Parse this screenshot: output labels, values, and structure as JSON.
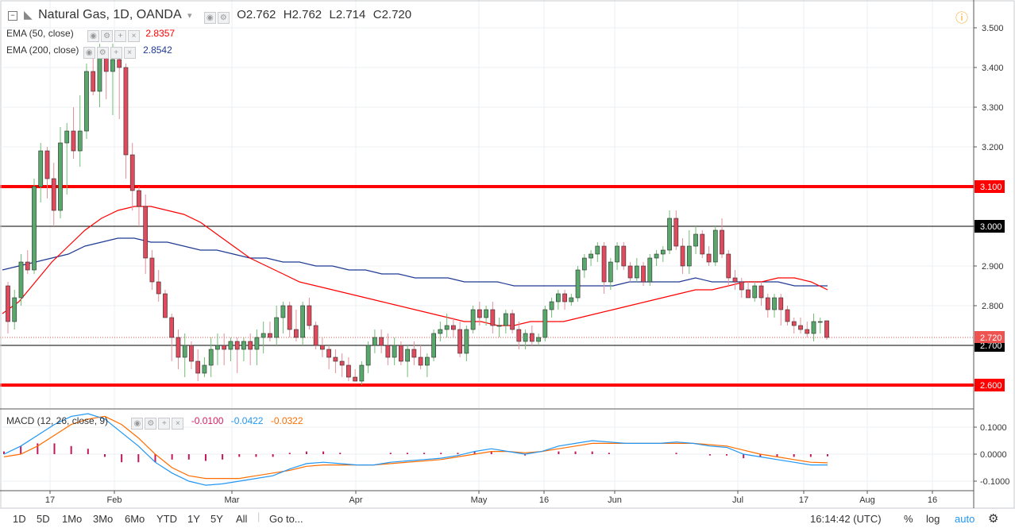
{
  "header": {
    "symbol_title": "Natural Gas, 1D, OANDA",
    "ohlc": [
      {
        "key": "O",
        "value": "2.762"
      },
      {
        "key": "H",
        "value": "2.762"
      },
      {
        "key": "L",
        "value": "2.714"
      },
      {
        "key": "C",
        "value": "2.720"
      }
    ],
    "indicators": [
      {
        "label": "EMA (50, close)",
        "value": "2.8357",
        "color": "#ff0000"
      },
      {
        "label": "EMA (200, close)",
        "value": "2.8542",
        "color": "#1f3a93"
      }
    ],
    "macd": {
      "label": "MACD (12, 26, close, 9)",
      "values": [
        {
          "value": "-0.0100",
          "color": "#d81b60"
        },
        {
          "value": "-0.0422",
          "color": "#2196f3"
        },
        {
          "value": "-0.0322",
          "color": "#ff6d00"
        }
      ]
    }
  },
  "bottom_bar": {
    "ranges": [
      "1D",
      "5D",
      "1Mo",
      "3Mo",
      "6Mo",
      "YTD",
      "1Y",
      "5Y",
      "All"
    ],
    "goto": "Go to...",
    "clock": "16:14:42 (UTC)",
    "percent": "%",
    "log": "log",
    "auto": "auto"
  },
  "chart_data": [
    {
      "type": "candlestick",
      "title": "Natural Gas, 1D, OANDA",
      "ylim": [
        2.54,
        3.54
      ],
      "y_ticks": [
        "3.500",
        "3.400",
        "3.300",
        "3.200",
        "3.000",
        "2.900",
        "2.800",
        "2.600"
      ],
      "x_tick_labels": [
        "17",
        "Feb",
        "Mar",
        "Apr",
        "May",
        "16",
        "Jun",
        "Jul",
        "17",
        "Aug",
        "16"
      ],
      "horizontal_levels": [
        {
          "value": 3.1,
          "label": "3.100",
          "color": "#ff0000",
          "style": "thick"
        },
        {
          "value": 3.0,
          "label": "3.000",
          "color": "#000000",
          "style": "thin"
        },
        {
          "value": 2.7,
          "label": "2.700",
          "color": "#000000",
          "style": "thin"
        },
        {
          "value": 2.6,
          "label": "2.600",
          "color": "#ff0000",
          "style": "thick"
        }
      ],
      "last_price": {
        "value": 2.72,
        "label": "2.720",
        "color": "#ef5350"
      },
      "candles": [
        [
          2.85,
          2.86,
          2.73,
          2.76
        ],
        [
          2.76,
          2.84,
          2.74,
          2.82
        ],
        [
          2.82,
          2.93,
          2.8,
          2.91
        ],
        [
          2.91,
          2.94,
          2.88,
          2.89
        ],
        [
          2.89,
          3.12,
          2.88,
          3.1
        ],
        [
          3.1,
          3.21,
          3.06,
          3.19
        ],
        [
          3.19,
          3.2,
          3.07,
          3.12
        ],
        [
          3.12,
          3.16,
          3.0,
          3.04
        ],
        [
          3.04,
          3.25,
          3.02,
          3.21
        ],
        [
          3.21,
          3.26,
          3.08,
          3.24
        ],
        [
          3.24,
          3.3,
          3.17,
          3.19
        ],
        [
          3.19,
          3.33,
          3.15,
          3.24
        ],
        [
          3.24,
          3.41,
          3.22,
          3.39
        ],
        [
          3.39,
          3.45,
          3.33,
          3.34
        ],
        [
          3.34,
          3.46,
          3.3,
          3.44
        ],
        [
          3.44,
          3.45,
          3.32,
          3.39
        ],
        [
          3.39,
          3.46,
          3.28,
          3.42
        ],
        [
          3.42,
          3.43,
          3.27,
          3.4
        ],
        [
          3.4,
          3.41,
          3.12,
          3.18
        ],
        [
          3.18,
          3.21,
          3.04,
          3.09
        ],
        [
          3.09,
          3.1,
          3.0,
          3.05
        ],
        [
          3.05,
          3.08,
          2.88,
          2.92
        ],
        [
          2.92,
          2.94,
          2.84,
          2.86
        ],
        [
          2.86,
          2.89,
          2.81,
          2.83
        ],
        [
          2.83,
          2.84,
          2.77,
          2.77
        ],
        [
          2.77,
          2.78,
          2.66,
          2.72
        ],
        [
          2.72,
          2.74,
          2.64,
          2.67
        ],
        [
          2.67,
          2.73,
          2.62,
          2.7
        ],
        [
          2.7,
          2.71,
          2.64,
          2.66
        ],
        [
          2.66,
          2.69,
          2.61,
          2.63
        ],
        [
          2.63,
          2.67,
          2.62,
          2.65
        ],
        [
          2.65,
          2.72,
          2.62,
          2.69
        ],
        [
          2.69,
          2.73,
          2.65,
          2.7
        ],
        [
          2.7,
          2.73,
          2.65,
          2.69
        ],
        [
          2.69,
          2.72,
          2.66,
          2.71
        ],
        [
          2.71,
          2.72,
          2.63,
          2.69
        ],
        [
          2.69,
          2.72,
          2.66,
          2.71
        ],
        [
          2.71,
          2.73,
          2.65,
          2.69
        ],
        [
          2.69,
          2.74,
          2.65,
          2.72
        ],
        [
          2.72,
          2.76,
          2.68,
          2.73
        ],
        [
          2.73,
          2.76,
          2.71,
          2.72
        ],
        [
          2.72,
          2.8,
          2.7,
          2.77
        ],
        [
          2.77,
          2.81,
          2.73,
          2.8
        ],
        [
          2.8,
          2.81,
          2.72,
          2.74
        ],
        [
          2.74,
          2.79,
          2.71,
          2.72
        ],
        [
          2.72,
          2.81,
          2.7,
          2.8
        ],
        [
          2.8,
          2.82,
          2.74,
          2.75
        ],
        [
          2.75,
          2.76,
          2.69,
          2.7
        ],
        [
          2.7,
          2.72,
          2.67,
          2.69
        ],
        [
          2.69,
          2.7,
          2.64,
          2.67
        ],
        [
          2.67,
          2.69,
          2.63,
          2.66
        ],
        [
          2.66,
          2.68,
          2.62,
          2.65
        ],
        [
          2.65,
          2.67,
          2.61,
          2.62
        ],
        [
          2.62,
          2.64,
          2.61,
          2.61
        ],
        [
          2.61,
          2.66,
          2.6,
          2.65
        ],
        [
          2.65,
          2.71,
          2.63,
          2.7
        ],
        [
          2.7,
          2.74,
          2.68,
          2.72
        ],
        [
          2.72,
          2.74,
          2.68,
          2.7
        ],
        [
          2.7,
          2.73,
          2.65,
          2.67
        ],
        [
          2.67,
          2.72,
          2.65,
          2.7
        ],
        [
          2.7,
          2.71,
          2.65,
          2.66
        ],
        [
          2.66,
          2.7,
          2.62,
          2.69
        ],
        [
          2.69,
          2.71,
          2.65,
          2.67
        ],
        [
          2.67,
          2.7,
          2.64,
          2.65
        ],
        [
          2.65,
          2.68,
          2.62,
          2.67
        ],
        [
          2.67,
          2.74,
          2.66,
          2.73
        ],
        [
          2.73,
          2.76,
          2.71,
          2.74
        ],
        [
          2.74,
          2.78,
          2.72,
          2.75
        ],
        [
          2.75,
          2.77,
          2.72,
          2.74
        ],
        [
          2.74,
          2.76,
          2.67,
          2.68
        ],
        [
          2.68,
          2.75,
          2.66,
          2.74
        ],
        [
          2.74,
          2.8,
          2.73,
          2.79
        ],
        [
          2.79,
          2.81,
          2.75,
          2.77
        ],
        [
          2.77,
          2.8,
          2.75,
          2.79
        ],
        [
          2.79,
          2.81,
          2.73,
          2.75
        ],
        [
          2.75,
          2.77,
          2.72,
          2.75
        ],
        [
          2.75,
          2.79,
          2.73,
          2.78
        ],
        [
          2.78,
          2.79,
          2.73,
          2.74
        ],
        [
          2.74,
          2.76,
          2.69,
          2.71
        ],
        [
          2.71,
          2.74,
          2.69,
          2.73
        ],
        [
          2.73,
          2.75,
          2.7,
          2.71
        ],
        [
          2.71,
          2.73,
          2.7,
          2.72
        ],
        [
          2.72,
          2.8,
          2.71,
          2.79
        ],
        [
          2.79,
          2.82,
          2.77,
          2.81
        ],
        [
          2.81,
          2.84,
          2.79,
          2.83
        ],
        [
          2.83,
          2.84,
          2.79,
          2.81
        ],
        [
          2.81,
          2.83,
          2.8,
          2.82
        ],
        [
          2.82,
          2.9,
          2.81,
          2.89
        ],
        [
          2.89,
          2.93,
          2.87,
          2.92
        ],
        [
          2.92,
          2.94,
          2.9,
          2.93
        ],
        [
          2.93,
          2.96,
          2.91,
          2.95
        ],
        [
          2.95,
          2.96,
          2.83,
          2.86
        ],
        [
          2.86,
          2.92,
          2.84,
          2.91
        ],
        [
          2.91,
          2.96,
          2.89,
          2.95
        ],
        [
          2.95,
          2.96,
          2.89,
          2.9
        ],
        [
          2.9,
          2.91,
          2.86,
          2.87
        ],
        [
          2.87,
          2.92,
          2.86,
          2.9
        ],
        [
          2.9,
          2.91,
          2.85,
          2.86
        ],
        [
          2.86,
          2.93,
          2.85,
          2.92
        ],
        [
          2.92,
          2.94,
          2.9,
          2.93
        ],
        [
          2.93,
          2.95,
          2.91,
          2.94
        ],
        [
          2.94,
          3.04,
          2.93,
          3.02
        ],
        [
          3.02,
          3.04,
          2.94,
          2.95
        ],
        [
          2.95,
          2.97,
          2.88,
          2.9
        ],
        [
          2.9,
          2.99,
          2.88,
          2.95
        ],
        [
          2.95,
          3.0,
          2.93,
          2.98
        ],
        [
          2.98,
          2.99,
          2.92,
          2.93
        ],
        [
          2.93,
          2.95,
          2.9,
          2.91
        ],
        [
          2.91,
          3.0,
          2.9,
          2.99
        ],
        [
          2.99,
          3.02,
          2.92,
          2.93
        ],
        [
          2.93,
          2.94,
          2.85,
          2.87
        ],
        [
          2.87,
          2.89,
          2.84,
          2.86
        ],
        [
          2.86,
          2.87,
          2.82,
          2.84
        ],
        [
          2.84,
          2.86,
          2.82,
          2.82
        ],
        [
          2.82,
          2.86,
          2.81,
          2.85
        ],
        [
          2.85,
          2.86,
          2.8,
          2.82
        ],
        [
          2.82,
          2.83,
          2.77,
          2.79
        ],
        [
          2.79,
          2.83,
          2.77,
          2.82
        ],
        [
          2.82,
          2.83,
          2.75,
          2.79
        ],
        [
          2.79,
          2.8,
          2.75,
          2.76
        ],
        [
          2.76,
          2.77,
          2.73,
          2.75
        ],
        [
          2.75,
          2.77,
          2.73,
          2.74
        ],
        [
          2.74,
          2.76,
          2.72,
          2.73
        ],
        [
          2.73,
          2.78,
          2.71,
          2.76
        ],
        [
          2.76,
          2.77,
          2.73,
          2.76
        ],
        [
          2.762,
          2.762,
          2.714,
          2.72
        ]
      ],
      "ema50": [
        2.78,
        2.81,
        2.86,
        2.91,
        2.95,
        2.99,
        3.02,
        3.04,
        3.05,
        3.05,
        3.04,
        3.03,
        3.01,
        2.98,
        2.95,
        2.92,
        2.9,
        2.88,
        2.86,
        2.85,
        2.84,
        2.83,
        2.82,
        2.81,
        2.8,
        2.79,
        2.78,
        2.77,
        2.76,
        2.76,
        2.75,
        2.75,
        2.76,
        2.76,
        2.76,
        2.77,
        2.78,
        2.79,
        2.8,
        2.81,
        2.82,
        2.83,
        2.84,
        2.84,
        2.85,
        2.86,
        2.86,
        2.87,
        2.87,
        2.86,
        2.84
      ],
      "ema200": [
        2.89,
        2.9,
        2.91,
        2.92,
        2.93,
        2.95,
        2.96,
        2.97,
        2.97,
        2.96,
        2.96,
        2.95,
        2.94,
        2.94,
        2.93,
        2.92,
        2.92,
        2.91,
        2.91,
        2.9,
        2.9,
        2.89,
        2.89,
        2.88,
        2.88,
        2.87,
        2.87,
        2.87,
        2.86,
        2.86,
        2.86,
        2.85,
        2.85,
        2.85,
        2.85,
        2.85,
        2.85,
        2.85,
        2.86,
        2.86,
        2.86,
        2.86,
        2.87,
        2.86,
        2.86,
        2.86,
        2.86,
        2.86,
        2.85,
        2.85,
        2.85
      ]
    },
    {
      "type": "macd",
      "title": "MACD (12, 26, close, 9)",
      "ylim": [
        -0.135,
        0.155
      ],
      "y_ticks": [
        "0.1000",
        "0.0000",
        "-0.1000"
      ],
      "macd_line": [
        0.0,
        0.03,
        0.07,
        0.11,
        0.14,
        0.15,
        0.13,
        0.08,
        0.03,
        -0.03,
        -0.07,
        -0.1,
        -0.115,
        -0.11,
        -0.1,
        -0.09,
        -0.08,
        -0.055,
        -0.035,
        -0.03,
        -0.035,
        -0.04,
        -0.04,
        -0.03,
        -0.025,
        -0.02,
        -0.015,
        -0.005,
        0.01,
        0.02,
        0.01,
        0.0,
        0.01,
        0.03,
        0.04,
        0.05,
        0.045,
        0.04,
        0.04,
        0.04,
        0.045,
        0.04,
        0.03,
        0.025,
        0.0,
        -0.01,
        -0.02,
        -0.03,
        -0.04,
        -0.04
      ],
      "signal_line": [
        -0.01,
        0.0,
        0.03,
        0.07,
        0.11,
        0.13,
        0.14,
        0.11,
        0.06,
        0.0,
        -0.05,
        -0.08,
        -0.09,
        -0.09,
        -0.09,
        -0.08,
        -0.07,
        -0.06,
        -0.045,
        -0.04,
        -0.04,
        -0.04,
        -0.04,
        -0.035,
        -0.03,
        -0.025,
        -0.02,
        -0.01,
        0.0,
        0.01,
        0.01,
        0.005,
        0.01,
        0.02,
        0.03,
        0.04,
        0.04,
        0.04,
        0.04,
        0.04,
        0.04,
        0.04,
        0.035,
        0.03,
        0.015,
        0.0,
        -0.01,
        -0.02,
        -0.03,
        -0.032
      ],
      "histogram": [
        0.01,
        0.03,
        0.04,
        0.04,
        0.03,
        0.02,
        -0.01,
        -0.03,
        -0.03,
        -0.03,
        -0.02,
        -0.02,
        -0.025,
        -0.02,
        -0.01,
        -0.01,
        -0.01,
        0.005,
        0.01,
        0.01,
        0.005,
        0.0,
        0.0,
        0.005,
        0.005,
        0.005,
        0.005,
        0.005,
        0.01,
        0.01,
        0.0,
        -0.005,
        0.0,
        0.01,
        0.01,
        0.01,
        0.005,
        0.0,
        0.0,
        0.0,
        0.005,
        0.0,
        -0.005,
        -0.005,
        -0.015,
        -0.01,
        -0.01,
        -0.01,
        -0.01,
        -0.008
      ]
    }
  ]
}
